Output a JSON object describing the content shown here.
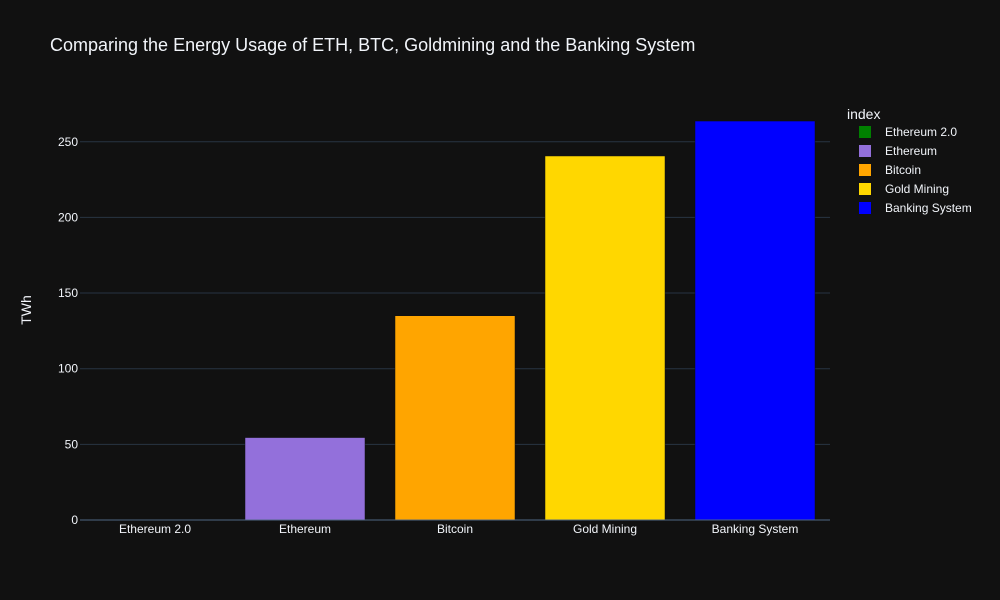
{
  "chart_data": {
    "type": "bar",
    "title": "Comparing the Energy Usage of ETH, BTC, Goldmining and the Banking System",
    "xlabel": "",
    "ylabel": "TWh",
    "categories": [
      "Ethereum 2.0",
      "Ethereum",
      "Bitcoin",
      "Gold Mining",
      "Banking System"
    ],
    "series": [
      {
        "name": "Ethereum 2.0",
        "category": "Ethereum 2.0",
        "value": 0.01,
        "color": "#008000"
      },
      {
        "name": "Ethereum",
        "category": "Ethereum",
        "value": 54.5,
        "color": "#9370DB"
      },
      {
        "name": "Bitcoin",
        "category": "Bitcoin",
        "value": 135,
        "color": "#FFA500"
      },
      {
        "name": "Gold Mining",
        "category": "Gold Mining",
        "value": 240.6,
        "color": "#FFD700"
      },
      {
        "name": "Banking System",
        "category": "Banking System",
        "value": 263.7,
        "color": "#0000FF"
      }
    ],
    "ylim": [
      0,
      277.6
    ],
    "yticks": [
      0,
      50,
      100,
      150,
      200,
      250
    ],
    "grid": true,
    "legend": {
      "title": "index",
      "placement": "top-right"
    },
    "colors": {
      "background": "#111111",
      "grid": "#283442",
      "zero_line": "#506784",
      "text": "#f2f5fa"
    }
  }
}
